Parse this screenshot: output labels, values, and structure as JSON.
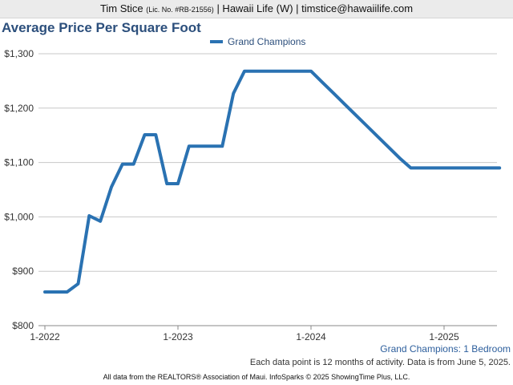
{
  "header": {
    "name": "Tim Stice",
    "license": "(Lic. No. #RB-21556)",
    "rest": "| Hawaii Life (W) | timstice@hawaiilife.com"
  },
  "chart_data": {
    "type": "line",
    "title": "Average Price Per Square Foot",
    "xlabel": "",
    "ylabel": "",
    "ylim": [
      800,
      1300
    ],
    "y_ticks": [
      "$800",
      "$900",
      "$1,000",
      "$1,100",
      "$1,200",
      "$1,300"
    ],
    "y_tick_values": [
      800,
      900,
      1000,
      1100,
      1200,
      1300
    ],
    "x_ticks": [
      "1-2022",
      "1-2023",
      "1-2024",
      "1-2025"
    ],
    "x_tick_values": [
      0,
      12,
      24,
      36
    ],
    "x_range": [
      0,
      41
    ],
    "x_unit": "months since 1-2022",
    "series": [
      {
        "name": "Grand Champions",
        "color": "#2a72b2",
        "x": [
          0,
          1,
          2,
          3,
          4,
          5,
          6,
          7,
          8,
          9,
          10,
          11,
          12,
          13,
          14,
          15,
          16,
          17,
          18,
          19,
          20,
          21,
          22,
          23,
          24,
          25,
          26,
          27,
          28,
          29,
          30,
          31,
          32,
          33,
          34,
          35,
          36,
          37,
          38,
          39,
          40,
          41
        ],
        "values": [
          862,
          862,
          862,
          877,
          1002,
          992,
          1055,
          1097,
          1097,
          1151,
          1151,
          1061,
          1061,
          1130,
          1130,
          1130,
          1130,
          1227,
          1268,
          1268,
          1268,
          1268,
          1268,
          1268,
          1268,
          1248,
          1228,
          1208,
          1188,
          1168,
          1148,
          1128,
          1108,
          1090,
          1090,
          1090,
          1090,
          1090,
          1090,
          1090,
          1090,
          1090
        ]
      }
    ],
    "grid": true,
    "legend": "top-center"
  },
  "subtitle": "Grand Champions: 1 Bedroom",
  "note": "Each data point is 12 months of activity. Data is from June 5, 2025.",
  "footer": "All data from the REALTORS® Association of Maui. InfoSparks © 2025 ShowingTime Plus, LLC."
}
